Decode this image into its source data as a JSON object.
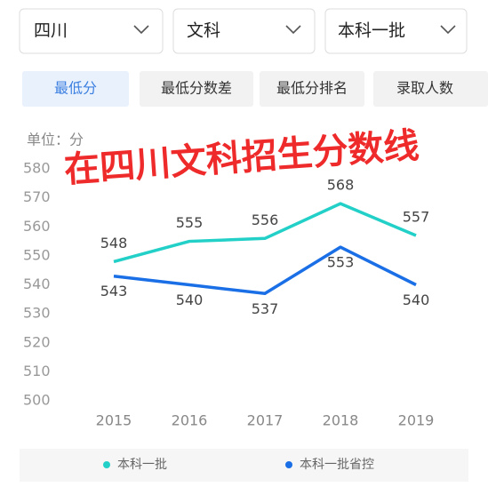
{
  "dropdowns": [
    "四川",
    "文科",
    "本科一批"
  ],
  "tabs": [
    "最低分",
    "最低分数差",
    "最低分排名",
    "录取人数"
  ],
  "overlay_text": "在四川文科招生分数线",
  "chart_data": {
    "type": "line",
    "unit_label": "单位：分",
    "categories": [
      "2015",
      "2016",
      "2017",
      "2018",
      "2019"
    ],
    "series": [
      {
        "name": "本科一批",
        "color": "#22d0c8",
        "values": [
          548,
          555,
          556,
          568,
          557
        ]
      },
      {
        "name": "本科一批省控",
        "color": "#1a6fe6",
        "values": [
          543,
          540,
          537,
          553,
          540
        ]
      }
    ],
    "ylim": [
      500,
      580
    ],
    "yticks": [
      500,
      510,
      520,
      530,
      540,
      550,
      560,
      570,
      580
    ],
    "grid": false
  }
}
